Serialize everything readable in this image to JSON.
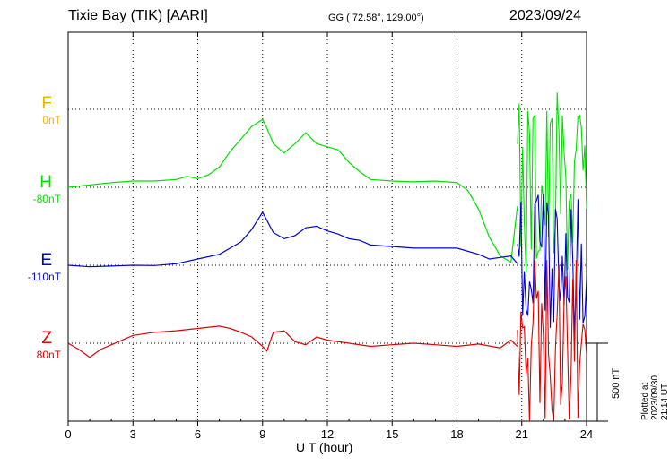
{
  "header": {
    "title": "Tixie Bay (TIK)  [AARI]",
    "coords": "GG ( 72.58°, 129.00°)",
    "date": "2023/09/24"
  },
  "footer": {
    "plotted": "Plotted at 2023/09/30 21:14 UT"
  },
  "colors": {
    "F": "#f0b000",
    "H": "#00e000",
    "E": "#0000d0",
    "Z": "#e00000"
  },
  "chart_data": {
    "type": "line",
    "title": "Tixie Bay (TIK)  [AARI]",
    "xlabel": "U T (hour)",
    "xlim": [
      0,
      24
    ],
    "x_ticks": [
      "0",
      "3",
      "6",
      "9",
      "12",
      "15",
      "18",
      "21",
      "24"
    ],
    "scale_bar": "500 nT",
    "grid": true,
    "series": [
      {
        "name": "F",
        "baseline": "0nT",
        "x": [],
        "values": []
      },
      {
        "name": "H",
        "baseline": "-80nT",
        "x": [
          0,
          1,
          2,
          3,
          4,
          5,
          5.5,
          6,
          6.5,
          7,
          7.5,
          8,
          8.5,
          9,
          9.2,
          9.5,
          10,
          10.5,
          11,
          11.5,
          12,
          12.5,
          13,
          13.5,
          14,
          15,
          16,
          17,
          18,
          18.5,
          19,
          19.5,
          20,
          20.5,
          20.8
        ],
        "values": [
          -80,
          -65,
          -50,
          -40,
          -40,
          -30,
          -10,
          -25,
          0,
          50,
          150,
          230,
          310,
          355,
          300,
          200,
          140,
          200,
          270,
          200,
          180,
          160,
          80,
          20,
          -30,
          -40,
          -45,
          -40,
          -50,
          -100,
          -220,
          -400,
          -520,
          -560,
          -200
        ]
      },
      {
        "name": "E",
        "baseline": "-110nT",
        "x": [
          0,
          1,
          2,
          3,
          4,
          5,
          6,
          7,
          7.5,
          8,
          8.5,
          9,
          9.5,
          10,
          10.5,
          11,
          11.5,
          12,
          12.5,
          13,
          13.5,
          14,
          15,
          16,
          17,
          18,
          19,
          19.5,
          20,
          20.5,
          20.8
        ],
        "values": [
          -110,
          -120,
          -115,
          -110,
          -112,
          -100,
          -70,
          -40,
          0,
          40,
          120,
          230,
          100,
          60,
          80,
          130,
          140,
          110,
          90,
          60,
          50,
          20,
          10,
          0,
          0,
          0,
          -40,
          -70,
          -60,
          -50,
          -100
        ]
      },
      {
        "name": "Z",
        "baseline": "80nT",
        "x": [
          0,
          0.5,
          1,
          1.5,
          2,
          3,
          4,
          5,
          6,
          7,
          7.5,
          8,
          8.5,
          9,
          9.2,
          9.5,
          10,
          10.5,
          11,
          11.5,
          12,
          13,
          14,
          15,
          16,
          17,
          18,
          19,
          20,
          20.5,
          20.8
        ],
        "values": [
          80,
          40,
          -10,
          40,
          70,
          130,
          150,
          160,
          175,
          190,
          175,
          150,
          120,
          60,
          30,
          150,
          160,
          90,
          70,
          120,
          100,
          80,
          60,
          70,
          80,
          70,
          60,
          75,
          50,
          100,
          60
        ]
      }
    ]
  }
}
